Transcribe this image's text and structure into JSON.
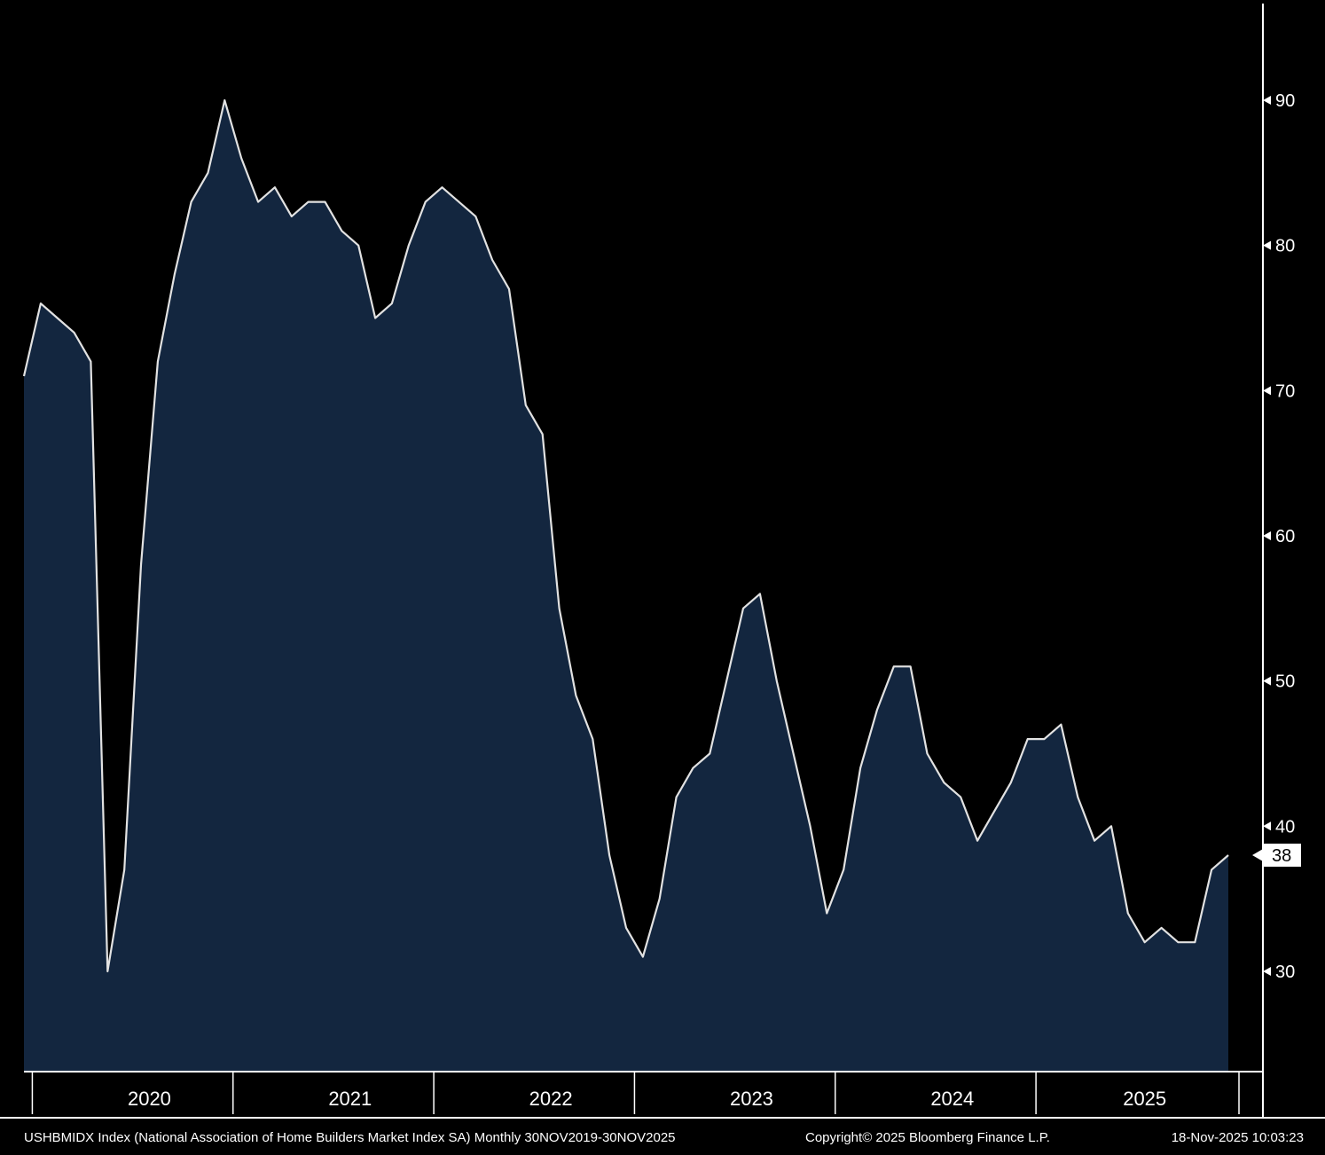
{
  "chart_data": {
    "type": "area",
    "title": "USHBMIDX Index (National Association of Home Builders Market Index SA)",
    "frequency": "Monthly",
    "period_start": "30NOV2019",
    "period_end": "30NOV2025",
    "grid": false,
    "legend_position": "none",
    "background": "#000000",
    "line_color": "#e2e2e2",
    "fill_color": "#13263f",
    "axis_color": "#ffffff",
    "ylim": [
      23,
      95
    ],
    "y_ticks": [
      30,
      40,
      50,
      60,
      70,
      80,
      90
    ],
    "x_tick_years": [
      "2020",
      "2021",
      "2022",
      "2023",
      "2024",
      "2025"
    ],
    "last_value": 38,
    "last_value_label": "38",
    "x_months": [
      "Nov-2019",
      "Dec-2019",
      "Jan-2020",
      "Feb-2020",
      "Mar-2020",
      "Apr-2020",
      "May-2020",
      "Jun-2020",
      "Jul-2020",
      "Aug-2020",
      "Sep-2020",
      "Oct-2020",
      "Nov-2020",
      "Dec-2020",
      "Jan-2021",
      "Feb-2021",
      "Mar-2021",
      "Apr-2021",
      "May-2021",
      "Jun-2021",
      "Jul-2021",
      "Aug-2021",
      "Sep-2021",
      "Oct-2021",
      "Nov-2021",
      "Dec-2021",
      "Jan-2022",
      "Feb-2022",
      "Mar-2022",
      "Apr-2022",
      "May-2022",
      "Jun-2022",
      "Jul-2022",
      "Aug-2022",
      "Sep-2022",
      "Oct-2022",
      "Nov-2022",
      "Dec-2022",
      "Jan-2023",
      "Feb-2023",
      "Mar-2023",
      "Apr-2023",
      "May-2023",
      "Jun-2023",
      "Jul-2023",
      "Aug-2023",
      "Sep-2023",
      "Oct-2023",
      "Nov-2023",
      "Dec-2023",
      "Jan-2024",
      "Feb-2024",
      "Mar-2024",
      "Apr-2024",
      "May-2024",
      "Jun-2024",
      "Jul-2024",
      "Aug-2024",
      "Sep-2024",
      "Oct-2024",
      "Nov-2024",
      "Dec-2024",
      "Jan-2025",
      "Feb-2025",
      "Mar-2025",
      "Apr-2025",
      "May-2025",
      "Jun-2025",
      "Jul-2025",
      "Aug-2025",
      "Sep-2025",
      "Oct-2025",
      "Nov-2025"
    ],
    "values": [
      71,
      76,
      75,
      74,
      72,
      30,
      37,
      58,
      72,
      78,
      83,
      85,
      90,
      86,
      83,
      84,
      82,
      83,
      83,
      81,
      80,
      75,
      76,
      80,
      83,
      84,
      83,
      82,
      79,
      77,
      69,
      67,
      55,
      49,
      46,
      38,
      33,
      31,
      35,
      42,
      44,
      45,
      50,
      55,
      56,
      50,
      45,
      40,
      34,
      37,
      44,
      48,
      51,
      51,
      45,
      43,
      42,
      39,
      41,
      43,
      46,
      46,
      47,
      42,
      39,
      40,
      34,
      32,
      33,
      32,
      32,
      37,
      38
    ]
  },
  "footer": {
    "left": "USHBMIDX Index (National Association of Home Builders Market Index SA) Monthly 30NOV2019-30NOV2025",
    "copyright": "Copyright© 2025 Bloomberg Finance L.P.",
    "timestamp": "18-Nov-2025 10:03:23"
  }
}
